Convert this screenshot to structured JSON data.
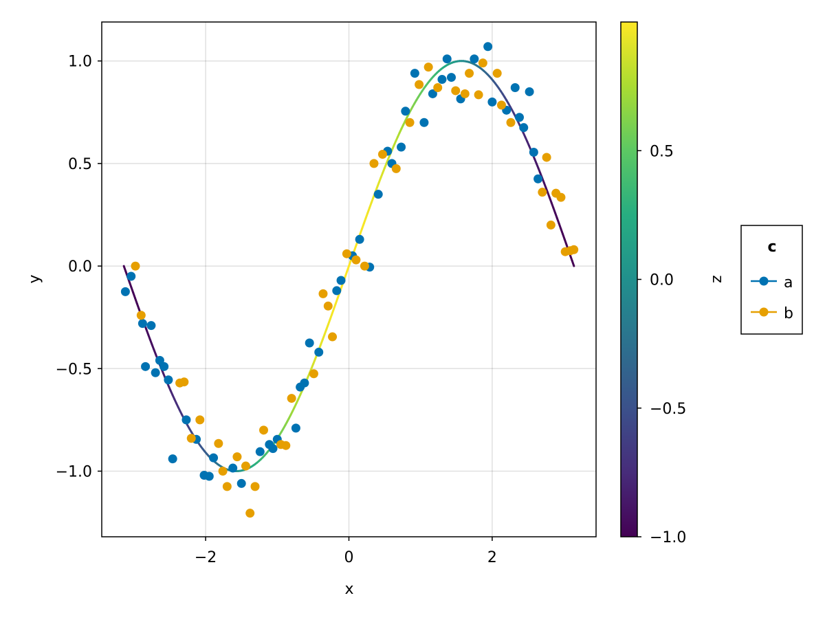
{
  "chart_data": {
    "type": "scatter",
    "xlabel": "x",
    "ylabel": "y",
    "xlim": [
      -3.45,
      3.45
    ],
    "ylim": [
      -1.32,
      1.19
    ],
    "xticks": [
      -2,
      0,
      2
    ],
    "xtick_labels": [
      "−2",
      "0",
      "2"
    ],
    "yticks": [
      -1.0,
      -0.5,
      0.0,
      0.5,
      1.0
    ],
    "ytick_labels": [
      "−1.0",
      "−0.5",
      "0.0",
      "0.5",
      "1.0"
    ],
    "grid": true,
    "line": {
      "function": "sin(x)",
      "x_range": [
        -3.14159,
        3.14159
      ],
      "color_by": "cos(x)",
      "colormap": "viridis"
    },
    "colorbar": {
      "label": "z",
      "range": [
        -1.0,
        1.0
      ],
      "ticks": [
        -1.0,
        -0.5,
        0.0,
        0.5
      ],
      "tick_labels": [
        "−1.0",
        "−0.5",
        "0.0",
        "0.5"
      ],
      "colormap": "viridis"
    },
    "legend": {
      "title": "c",
      "placement": "right",
      "entries": [
        {
          "label": "a",
          "color": "#0072b2"
        },
        {
          "label": "b",
          "color": "#e69f00"
        }
      ]
    },
    "series": [
      {
        "name": "a",
        "color": "#0072b2",
        "points": [
          [
            -3.12,
            -0.125
          ],
          [
            -3.04,
            -0.05
          ],
          [
            -2.88,
            -0.28
          ],
          [
            -2.84,
            -0.49
          ],
          [
            -2.76,
            -0.29
          ],
          [
            -2.7,
            -0.52
          ],
          [
            -2.64,
            -0.46
          ],
          [
            -2.58,
            -0.49
          ],
          [
            -2.52,
            -0.555
          ],
          [
            -2.46,
            -0.94
          ],
          [
            -2.27,
            -0.75
          ],
          [
            -2.13,
            -0.845
          ],
          [
            -2.02,
            -1.02
          ],
          [
            -1.95,
            -1.025
          ],
          [
            -1.89,
            -0.935
          ],
          [
            -1.62,
            -0.985
          ],
          [
            -1.5,
            -1.06
          ],
          [
            -1.24,
            -0.905
          ],
          [
            -1.11,
            -0.87
          ],
          [
            -1.06,
            -0.89
          ],
          [
            -1.0,
            -0.845
          ],
          [
            -0.74,
            -0.79
          ],
          [
            -0.68,
            -0.59
          ],
          [
            -0.62,
            -0.57
          ],
          [
            -0.55,
            -0.375
          ],
          [
            -0.42,
            -0.42
          ],
          [
            -0.17,
            -0.12
          ],
          [
            -0.11,
            -0.07
          ],
          [
            0.05,
            0.05
          ],
          [
            0.15,
            0.13
          ],
          [
            0.29,
            -0.005
          ],
          [
            0.41,
            0.35
          ],
          [
            0.54,
            0.56
          ],
          [
            0.6,
            0.5
          ],
          [
            0.73,
            0.58
          ],
          [
            0.79,
            0.755
          ],
          [
            0.92,
            0.94
          ],
          [
            1.05,
            0.7
          ],
          [
            1.17,
            0.84
          ],
          [
            1.3,
            0.91
          ],
          [
            1.37,
            1.01
          ],
          [
            1.43,
            0.92
          ],
          [
            1.56,
            0.815
          ],
          [
            1.75,
            1.01
          ],
          [
            1.94,
            1.07
          ],
          [
            2.0,
            0.8
          ],
          [
            2.2,
            0.76
          ],
          [
            2.32,
            0.87
          ],
          [
            2.38,
            0.725
          ],
          [
            2.44,
            0.675
          ],
          [
            2.52,
            0.85
          ],
          [
            2.58,
            0.555
          ],
          [
            2.64,
            0.425
          ]
        ]
      },
      {
        "name": "b",
        "color": "#e69f00",
        "points": [
          [
            -2.98,
            0.0
          ],
          [
            -2.9,
            -0.24
          ],
          [
            -2.36,
            -0.57
          ],
          [
            -2.3,
            -0.565
          ],
          [
            -2.2,
            -0.84
          ],
          [
            -2.08,
            -0.75
          ],
          [
            -1.82,
            -0.865
          ],
          [
            -1.76,
            -1.0
          ],
          [
            -1.7,
            -1.075
          ],
          [
            -1.56,
            -0.93
          ],
          [
            -1.44,
            -0.975
          ],
          [
            -1.38,
            -1.205
          ],
          [
            -1.31,
            -1.075
          ],
          [
            -1.19,
            -0.8
          ],
          [
            -0.95,
            -0.87
          ],
          [
            -0.88,
            -0.875
          ],
          [
            -0.8,
            -0.645
          ],
          [
            -0.49,
            -0.525
          ],
          [
            -0.36,
            -0.135
          ],
          [
            -0.29,
            -0.195
          ],
          [
            -0.23,
            -0.345
          ],
          [
            -0.03,
            0.06
          ],
          [
            0.1,
            0.03
          ],
          [
            0.22,
            0.0
          ],
          [
            0.35,
            0.5
          ],
          [
            0.47,
            0.545
          ],
          [
            0.66,
            0.475
          ],
          [
            0.85,
            0.7
          ],
          [
            0.98,
            0.885
          ],
          [
            1.11,
            0.97
          ],
          [
            1.24,
            0.87
          ],
          [
            1.49,
            0.855
          ],
          [
            1.62,
            0.84
          ],
          [
            1.68,
            0.94
          ],
          [
            1.81,
            0.835
          ],
          [
            1.87,
            0.99
          ],
          [
            2.07,
            0.94
          ],
          [
            2.13,
            0.785
          ],
          [
            2.26,
            0.7
          ],
          [
            2.7,
            0.36
          ],
          [
            2.76,
            0.53
          ],
          [
            2.82,
            0.2
          ],
          [
            2.89,
            0.355
          ],
          [
            2.96,
            0.335
          ],
          [
            3.02,
            0.07
          ],
          [
            3.09,
            0.075
          ],
          [
            3.14,
            0.08
          ]
        ]
      }
    ]
  }
}
